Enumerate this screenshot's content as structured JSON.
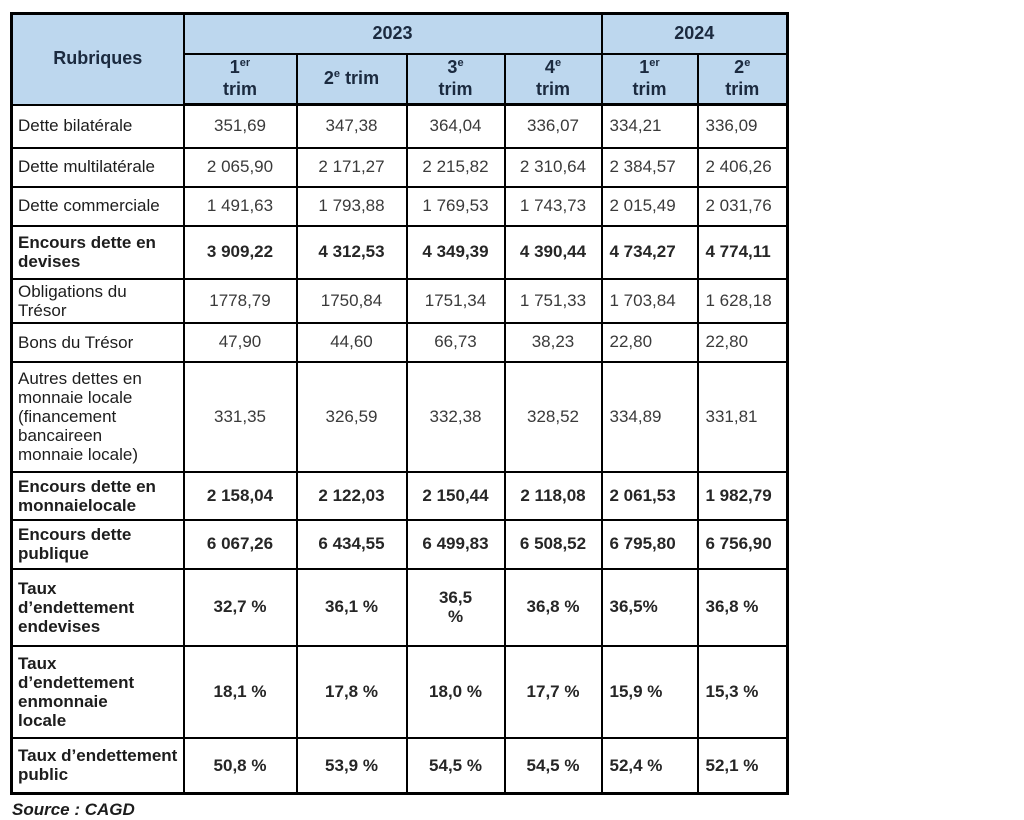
{
  "colors": {
    "header_bg": "#bdd7ee",
    "header_text": "#1b2a3f",
    "border": "#000000",
    "body_text": "#3a3a3a"
  },
  "table": {
    "header": {
      "rubriques_label": "Rubriques",
      "year_groups": [
        {
          "label": "2023",
          "colspan": 4
        },
        {
          "label": "2024",
          "colspan": 2
        }
      ],
      "quarters": [
        {
          "num": "1",
          "sup": "er",
          "rest": "trim",
          "two_line": true
        },
        {
          "num": "2",
          "sup": "e",
          "rest": "trim",
          "two_line": false
        },
        {
          "num": "3",
          "sup": "e",
          "rest": "trim",
          "two_line": true
        },
        {
          "num": "4",
          "sup": "e",
          "rest": "trim",
          "two_line": true
        },
        {
          "num": "1",
          "sup": "er",
          "rest": "trim",
          "two_line": true
        },
        {
          "num": "2",
          "sup": "e",
          "rest": "trim",
          "two_line": true
        }
      ]
    },
    "rows": [
      {
        "label": "Dette bilatérale",
        "bold": false,
        "values": [
          "351,69",
          "347,38",
          "364,04",
          "336,07",
          "334,21",
          "336,09"
        ]
      },
      {
        "label": "Dette multilatérale",
        "bold": false,
        "values": [
          "2 065,90",
          "2 171,27",
          "2 215,82",
          "2 310,64",
          "2 384,57",
          "2 406,26"
        ]
      },
      {
        "label": "Dette commerciale",
        "bold": false,
        "values": [
          "1 491,63",
          "1 793,88",
          "1 769,53",
          "1 743,73",
          "2 015,49",
          "2 031,76"
        ]
      },
      {
        "label": "Encours dette en\ndevises",
        "bold": true,
        "values": [
          "3 909,22",
          "4 312,53",
          "4 349,39",
          "4 390,44",
          "4 734,27",
          "4 774,11"
        ]
      },
      {
        "label": "Obligations du Trésor",
        "bold": false,
        "values": [
          "1778,79",
          "1750,84",
          "1751,34",
          "1 751,33",
          "1 703,84",
          "1 628,18"
        ]
      },
      {
        "label": "Bons du Trésor",
        "bold": false,
        "values": [
          "47,90",
          "44,60",
          "66,73",
          "38,23",
          "22,80",
          "22,80"
        ]
      },
      {
        "label": "Autres dettes en\nmonnaie locale\n(financement\nbancaireen\nmonnaie locale)",
        "bold": false,
        "values": [
          "331,35",
          "326,59",
          "332,38",
          "328,52",
          "334,89",
          "331,81"
        ]
      },
      {
        "label": "Encours dette en\nmonnaielocale",
        "bold": true,
        "values": [
          "2 158,04",
          "2 122,03",
          "2 150,44",
          "2 118,08",
          "2 061,53",
          "1 982,79"
        ]
      },
      {
        "label": "Encours dette\npublique",
        "bold": true,
        "values": [
          "6 067,26",
          "6 434,55",
          "6 499,83",
          "6 508,52",
          "6 795,80",
          "6 756,90"
        ]
      },
      {
        "label": "Taux\nd’endettement\nendevises",
        "bold": true,
        "values": [
          "32,7 %",
          "36,1 %",
          "36,5\n%",
          "36,8 %",
          "36,5%",
          "36,8 %"
        ]
      },
      {
        "label": "Taux\nd’endettement\nenmonnaie\nlocale",
        "bold": true,
        "values": [
          "18,1 %",
          "17,8 %",
          "18,0 %",
          "17,7 %",
          "15,9 %",
          "15,3 %"
        ]
      },
      {
        "label": "Taux d’endettement\npublic",
        "bold": true,
        "values": [
          "50,8 %",
          "53,9 %",
          "54,5 %",
          "54,5 %",
          "52,4 %",
          "52,1 %"
        ]
      }
    ]
  },
  "source": "Source : CAGD"
}
